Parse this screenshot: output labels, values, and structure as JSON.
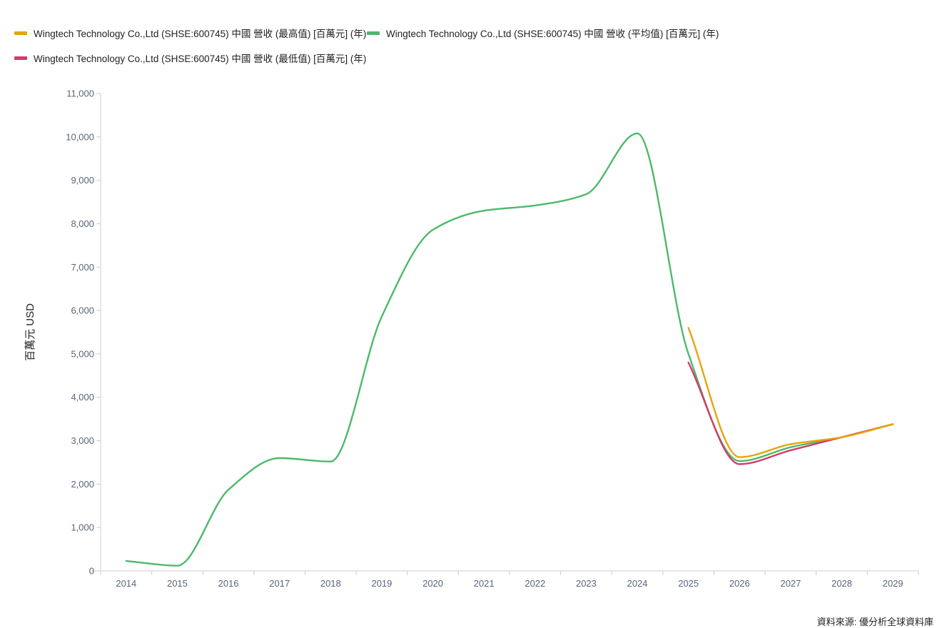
{
  "legend": [
    {
      "label": "Wingtech Technology Co.,Ltd (SHSE:600745) 中國 營收 (最高值) [百萬元] (年)",
      "color": "#E5A50A"
    },
    {
      "label": "Wingtech Technology Co.,Ltd (SHSE:600745) 中國 營收 (平均值) [百萬元] (年)",
      "color": "#4CB96B"
    },
    {
      "label": "Wingtech Technology Co.,Ltd (SHSE:600745) 中國 營收 (最低值) [百萬元] (年)",
      "color": "#D63B6E"
    }
  ],
  "source": "資料來源: 優分析全球資料庫",
  "chart_data": {
    "type": "line",
    "ylabel": "百萬元 USD",
    "xlabel": "",
    "ylim": [
      0,
      11000
    ],
    "yticks": [
      0,
      1000,
      2000,
      3000,
      4000,
      5000,
      6000,
      7000,
      8000,
      9000,
      10000,
      11000
    ],
    "ytick_labels": [
      "0",
      "1,000",
      "2,000",
      "3,000",
      "4,000",
      "5,000",
      "6,000",
      "7,000",
      "8,000",
      "9,000",
      "10,000",
      "11,000"
    ],
    "categories": [
      "2014",
      "2015",
      "2016",
      "2017",
      "2018",
      "2019",
      "2020",
      "2021",
      "2022",
      "2023",
      "2024",
      "2025",
      "2026",
      "2027",
      "2028",
      "2029"
    ],
    "grid": false,
    "legend_position": "top-left",
    "series": [
      {
        "name": "Wingtech Technology Co.,Ltd (SHSE:600745) 中國 營收 (最高值) [百萬元] (年)",
        "color": "#E5A50A",
        "values": [
          null,
          null,
          null,
          null,
          null,
          null,
          null,
          null,
          null,
          null,
          null,
          5600,
          2620,
          2920,
          3080,
          3380
        ]
      },
      {
        "name": "Wingtech Technology Co.,Ltd (SHSE:600745) 中國 營收 (平均值) [百萬元] (年)",
        "color": "#4CB96B",
        "values": [
          230,
          120,
          1870,
          2600,
          2520,
          5860,
          7860,
          8300,
          8420,
          8680,
          10080,
          5000,
          2530,
          2850,
          3080,
          3380
        ]
      },
      {
        "name": "Wingtech Technology Co.,Ltd (SHSE:600745) 中國 營收 (最低值) [百萬元] (年)",
        "color": "#D63B6E",
        "values": [
          null,
          null,
          null,
          null,
          null,
          null,
          null,
          null,
          null,
          null,
          null,
          4800,
          2460,
          2780,
          3080,
          3380
        ]
      }
    ]
  }
}
